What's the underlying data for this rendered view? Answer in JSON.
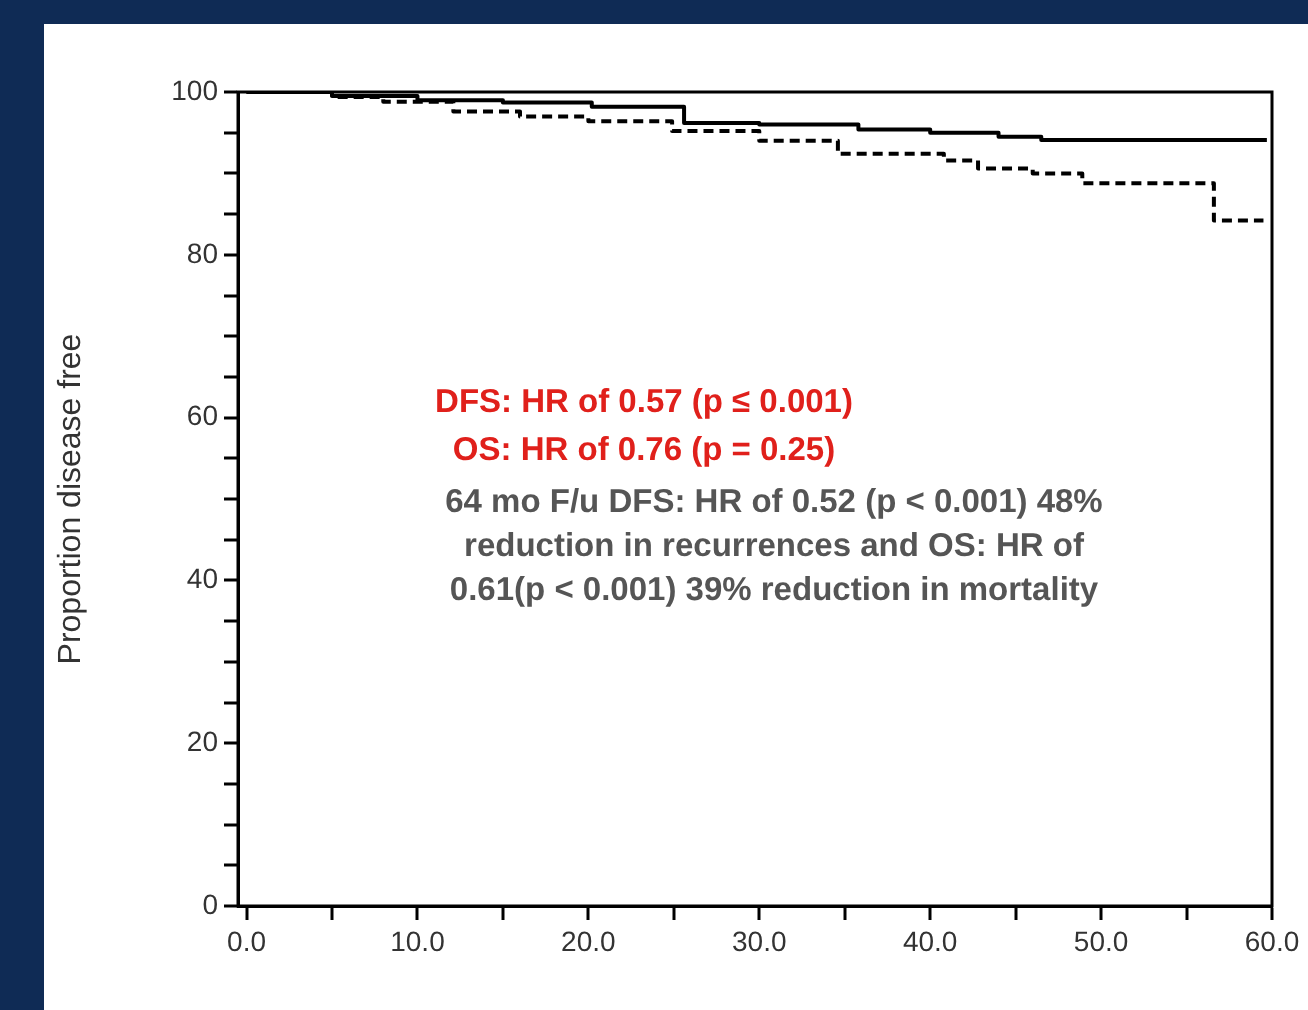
{
  "chart_data": {
    "type": "step",
    "ylabel": "Proportion disease free",
    "series": [
      {
        "color": "#000000",
        "line_style": "solid",
        "x": [
          0,
          5,
          10,
          15,
          20.2,
          25.6,
          30,
          35.8,
          40,
          44,
          46.5,
          50,
          55,
          59.7
        ],
        "values": [
          100,
          99.5,
          99,
          98.7,
          98.2,
          96.2,
          96,
          95.4,
          95,
          94.5,
          94.1,
          94.1,
          94.1,
          94.1
        ]
      },
      {
        "color": "#000000",
        "line_style": "dashed",
        "x": [
          0,
          5,
          8,
          12.1,
          16,
          20,
          24.9,
          30,
          34.6,
          40.8,
          42.8,
          46,
          48.9,
          53,
          56.1,
          56.6,
          59.5
        ],
        "values": [
          100,
          99.4,
          98.8,
          97.6,
          97,
          96.4,
          95.2,
          94,
          92.4,
          91.6,
          90.6,
          90,
          88.8,
          88.8,
          88.8,
          84.2,
          84.2
        ]
      }
    ],
    "xlim": [
      -0.5,
      60
    ],
    "ylim": [
      0,
      100
    ],
    "xticks": [
      {
        "value": 0,
        "label": "0.0"
      },
      {
        "value": 5,
        "label": null
      },
      {
        "value": 10,
        "label": "10.0"
      },
      {
        "value": 15,
        "label": null
      },
      {
        "value": 20,
        "label": "20.0"
      },
      {
        "value": 25,
        "label": null
      },
      {
        "value": 30,
        "label": "30.0"
      },
      {
        "value": 35,
        "label": null
      },
      {
        "value": 40,
        "label": "40.0"
      },
      {
        "value": 45,
        "label": null
      },
      {
        "value": 50,
        "label": "50.0"
      },
      {
        "value": 55,
        "label": null
      },
      {
        "value": 60,
        "label": "60.0"
      }
    ],
    "yticks": [
      0,
      {
        "value": 5,
        "label": null
      },
      {
        "value": 10,
        "label": null
      },
      {
        "value": 15,
        "label": null
      },
      20,
      {
        "value": 25,
        "label": null
      },
      {
        "value": 30,
        "label": null
      },
      {
        "value": 35,
        "label": null
      },
      40,
      {
        "value": 45,
        "label": null
      },
      {
        "value": 50,
        "label": null
      },
      {
        "value": 55,
        "label": null
      },
      60,
      {
        "value": 65,
        "label": null
      },
      {
        "value": 70,
        "label": null
      },
      {
        "value": 75,
        "label": null
      },
      80,
      {
        "value": 85,
        "label": null
      },
      {
        "value": 90,
        "label": null
      },
      {
        "value": 95,
        "label": null
      },
      100
    ],
    "grid": false,
    "legend": false,
    "annotations": [
      "DFS: HR of 0.57 (p ≤ 0.001)",
      "OS: HR of 0.76 (p = 0.25)",
      "64 mo F/u DFS: HR of 0.52 (p < 0.001) 48% reduction in recurrences  and OS: HR of 0.61(p < 0.001) 39% reduction in mortality"
    ]
  }
}
